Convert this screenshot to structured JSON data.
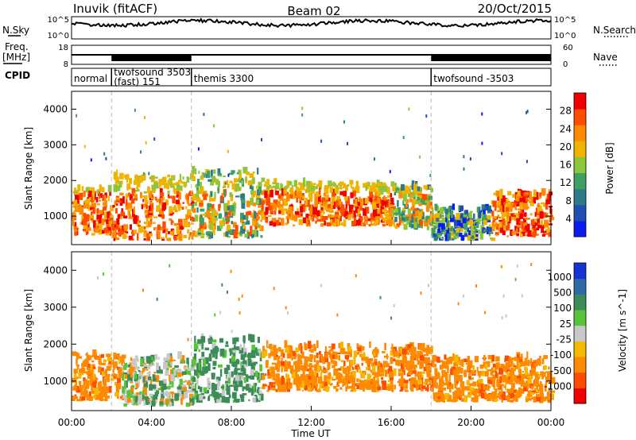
{
  "header": {
    "station": "Inuvik (fitACF)",
    "beam": "Beam 02",
    "date": "20/Oct/2015"
  },
  "strip_labels": {
    "nsky": "N.Sky",
    "freq_top": "Freq.",
    "freq_unit": "[MHz]",
    "cpid": "CPID",
    "nsearch": "N.Search",
    "nave": "Nave"
  },
  "strip_ticks": {
    "noise_left": [
      "10^5",
      "10^0"
    ],
    "noise_right": [
      "10^5",
      "10^0"
    ],
    "freq_left": [
      "18",
      "8"
    ],
    "nave_right": [
      "60",
      "0"
    ]
  },
  "cpid_segments": [
    {
      "label": "normal",
      "start_hour": 0.0
    },
    {
      "label": "twofsound 3503",
      "label2": "(fast) 151",
      "start_hour": 2.0
    },
    {
      "label": "themis 3300",
      "start_hour": 6.0
    },
    {
      "label": "twofsound -3503",
      "start_hour": 18.0
    }
  ],
  "colors": {
    "power_scale": [
      "#0a1cf0",
      "#1f4fb0",
      "#2e7a8a",
      "#3fa063",
      "#8cc63c",
      "#f0b400",
      "#ff8a00",
      "#ff4d00",
      "#f00000"
    ],
    "velocity_scale": [
      "#f00000",
      "#ff4d00",
      "#ff8a00",
      "#f5b800",
      "#c8c8c8",
      "#57c43a",
      "#3c8c5a",
      "#2e6aa8",
      "#1433d2"
    ],
    "guide_lines": "#bbbbbb"
  },
  "chart_data": [
    {
      "type": "heatmap",
      "panel": "power",
      "x_axis": {
        "label": "",
        "range_hours": [
          0,
          24
        ],
        "tick_labels": [
          "00:00",
          "04:00",
          "08:00",
          "12:00",
          "16:00",
          "20:00",
          "00:00"
        ]
      },
      "y_axis": {
        "label": "Slant Range [km]",
        "range_km": [
          200,
          4500
        ],
        "tick_labels": [
          "1000",
          "2000",
          "3000",
          "4000"
        ]
      },
      "colorbar": {
        "label": "Power [dB]",
        "range": [
          0,
          32
        ],
        "tick_labels": [
          "4",
          "8",
          "12",
          "16",
          "20",
          "24",
          "28"
        ]
      },
      "echo_regions": [
        {
          "t": [
            0,
            2
          ],
          "r": [
            450,
            1700
          ],
          "level": "strong"
        },
        {
          "t": [
            2,
            6
          ],
          "r": [
            300,
            2100
          ],
          "level": "strong"
        },
        {
          "t": [
            6,
            9.5
          ],
          "r": [
            350,
            2200
          ],
          "level": "moderate"
        },
        {
          "t": [
            9.5,
            16
          ],
          "r": [
            700,
            1900
          ],
          "level": "strong"
        },
        {
          "t": [
            16,
            18
          ],
          "r": [
            600,
            1800
          ],
          "level": "moderate"
        },
        {
          "t": [
            18,
            21
          ],
          "r": [
            300,
            1200
          ],
          "level": "weak"
        },
        {
          "t": [
            21,
            24
          ],
          "r": [
            400,
            1600
          ],
          "level": "strong"
        }
      ]
    },
    {
      "type": "heatmap",
      "panel": "velocity",
      "x_axis": {
        "label": "Time UT",
        "range_hours": [
          0,
          24
        ],
        "tick_labels": [
          "00:00",
          "04:00",
          "08:00",
          "12:00",
          "16:00",
          "20:00",
          "00:00"
        ]
      },
      "y_axis": {
        "label": "Slant Range [km]",
        "range_km": [
          200,
          4500
        ],
        "tick_labels": [
          "1000",
          "2000",
          "3000",
          "4000"
        ]
      },
      "colorbar": {
        "label": "Velocity [m s^-1]",
        "tick_labels": [
          "1000",
          "500",
          "100",
          "25",
          "-25",
          "-100",
          "-500",
          "-1000"
        ]
      },
      "echo_regions": [
        {
          "t": [
            0,
            2.5
          ],
          "r": [
            450,
            1700
          ],
          "velocity": "-100"
        },
        {
          "t": [
            2.5,
            6
          ],
          "r": [
            300,
            1600
          ],
          "velocity": "mixed"
        },
        {
          "t": [
            6,
            9.5
          ],
          "r": [
            400,
            2100
          ],
          "velocity": "100"
        },
        {
          "t": [
            9.5,
            18
          ],
          "r": [
            700,
            1900
          ],
          "velocity": "-100"
        },
        {
          "t": [
            18,
            24
          ],
          "r": [
            400,
            1600
          ],
          "velocity": "-100"
        }
      ]
    }
  ]
}
